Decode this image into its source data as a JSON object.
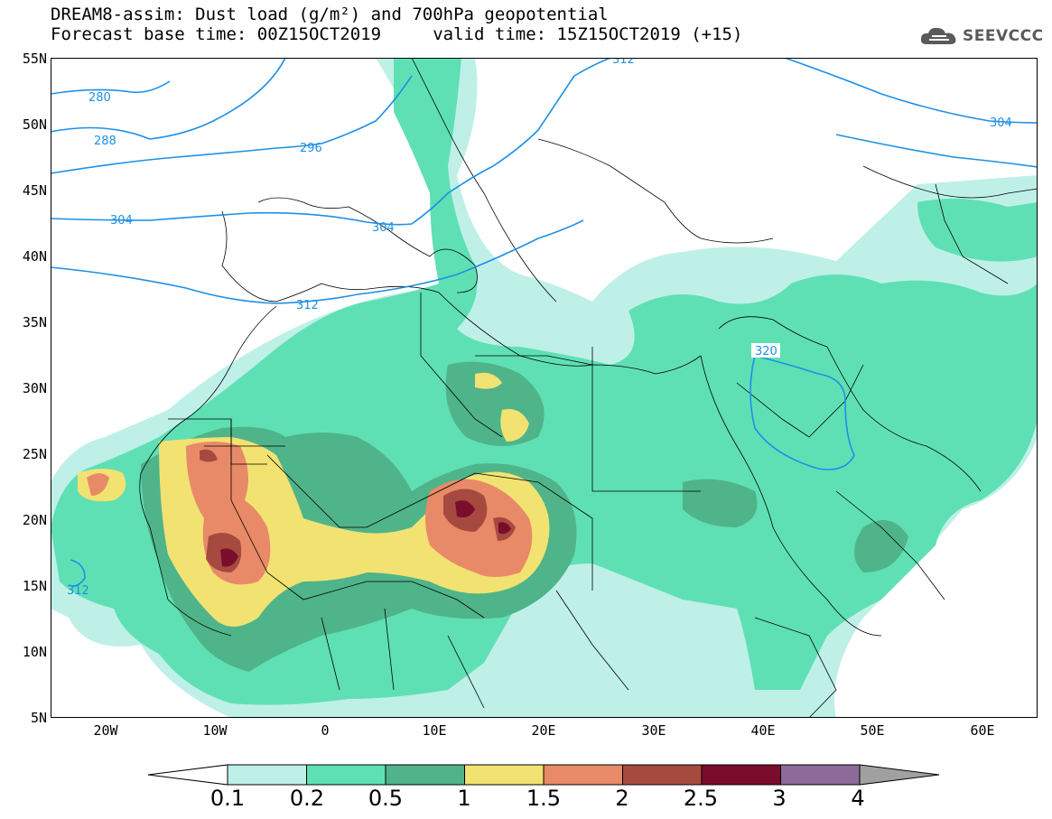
{
  "title": {
    "line1": "DREAM8-assim: Dust load (g/m²) and 700hPa geopotential",
    "line2": "Forecast base time: 00Z15OCT2019     valid time: 15Z15OCT2019 (+15)"
  },
  "logo": {
    "text": "SEEVCCC",
    "icon": "cloud-icon"
  },
  "lat_labels": [
    "55N",
    "50N",
    "45N",
    "40N",
    "35N",
    "30N",
    "25N",
    "20N",
    "15N",
    "10N",
    "5N"
  ],
  "lon_labels": [
    "20W",
    "10W",
    "0",
    "10E",
    "20E",
    "30E",
    "40E",
    "50E",
    "60E"
  ],
  "contour_labels": [
    "280",
    "288",
    "296",
    "304",
    "304",
    "304",
    "312",
    "312",
    "312",
    "320"
  ],
  "colorbar": {
    "ticks": [
      "0.1",
      "0.2",
      "0.5",
      "1",
      "1.5",
      "2",
      "2.5",
      "3",
      "4"
    ],
    "colors": [
      "#bff0e8",
      "#5fe0b4",
      "#4fb48a",
      "#f2e272",
      "#e88a68",
      "#a64a40",
      "#7a0c2c",
      "#8c6a9a",
      "#a0a0a0"
    ]
  },
  "colors": {
    "contour": "#1e90e6",
    "border": "#000000",
    "land_bg": "#ffffff"
  }
}
